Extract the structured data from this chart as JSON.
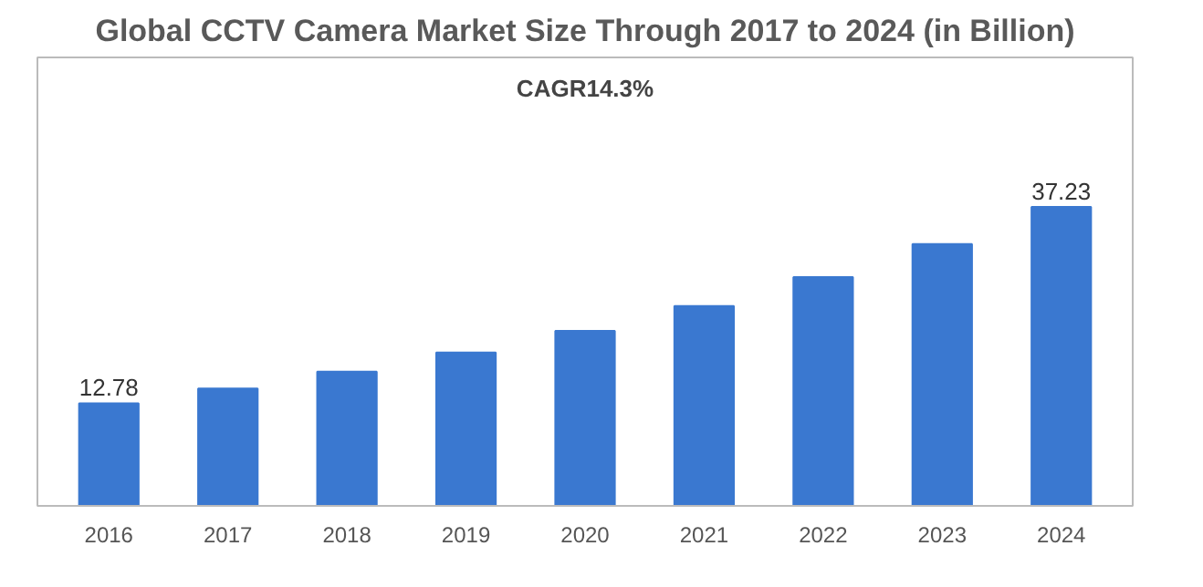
{
  "chart_data": {
    "type": "bar",
    "title": "Global CCTV Camera Market Size Through 2017 to 2024 (in Billion)",
    "categories": [
      "2016",
      "2017",
      "2018",
      "2019",
      "2020",
      "2021",
      "2022",
      "2023",
      "2024"
    ],
    "values": [
      12.78,
      14.6,
      16.7,
      19.1,
      21.8,
      24.9,
      28.5,
      32.6,
      37.23
    ],
    "value_labels": [
      "12.78",
      null,
      null,
      null,
      null,
      null,
      null,
      null,
      "37.23"
    ],
    "color": "#3a78d0",
    "grid": false,
    "tick_labels": "x",
    "annotations": [
      "CAGR14.3%"
    ]
  }
}
